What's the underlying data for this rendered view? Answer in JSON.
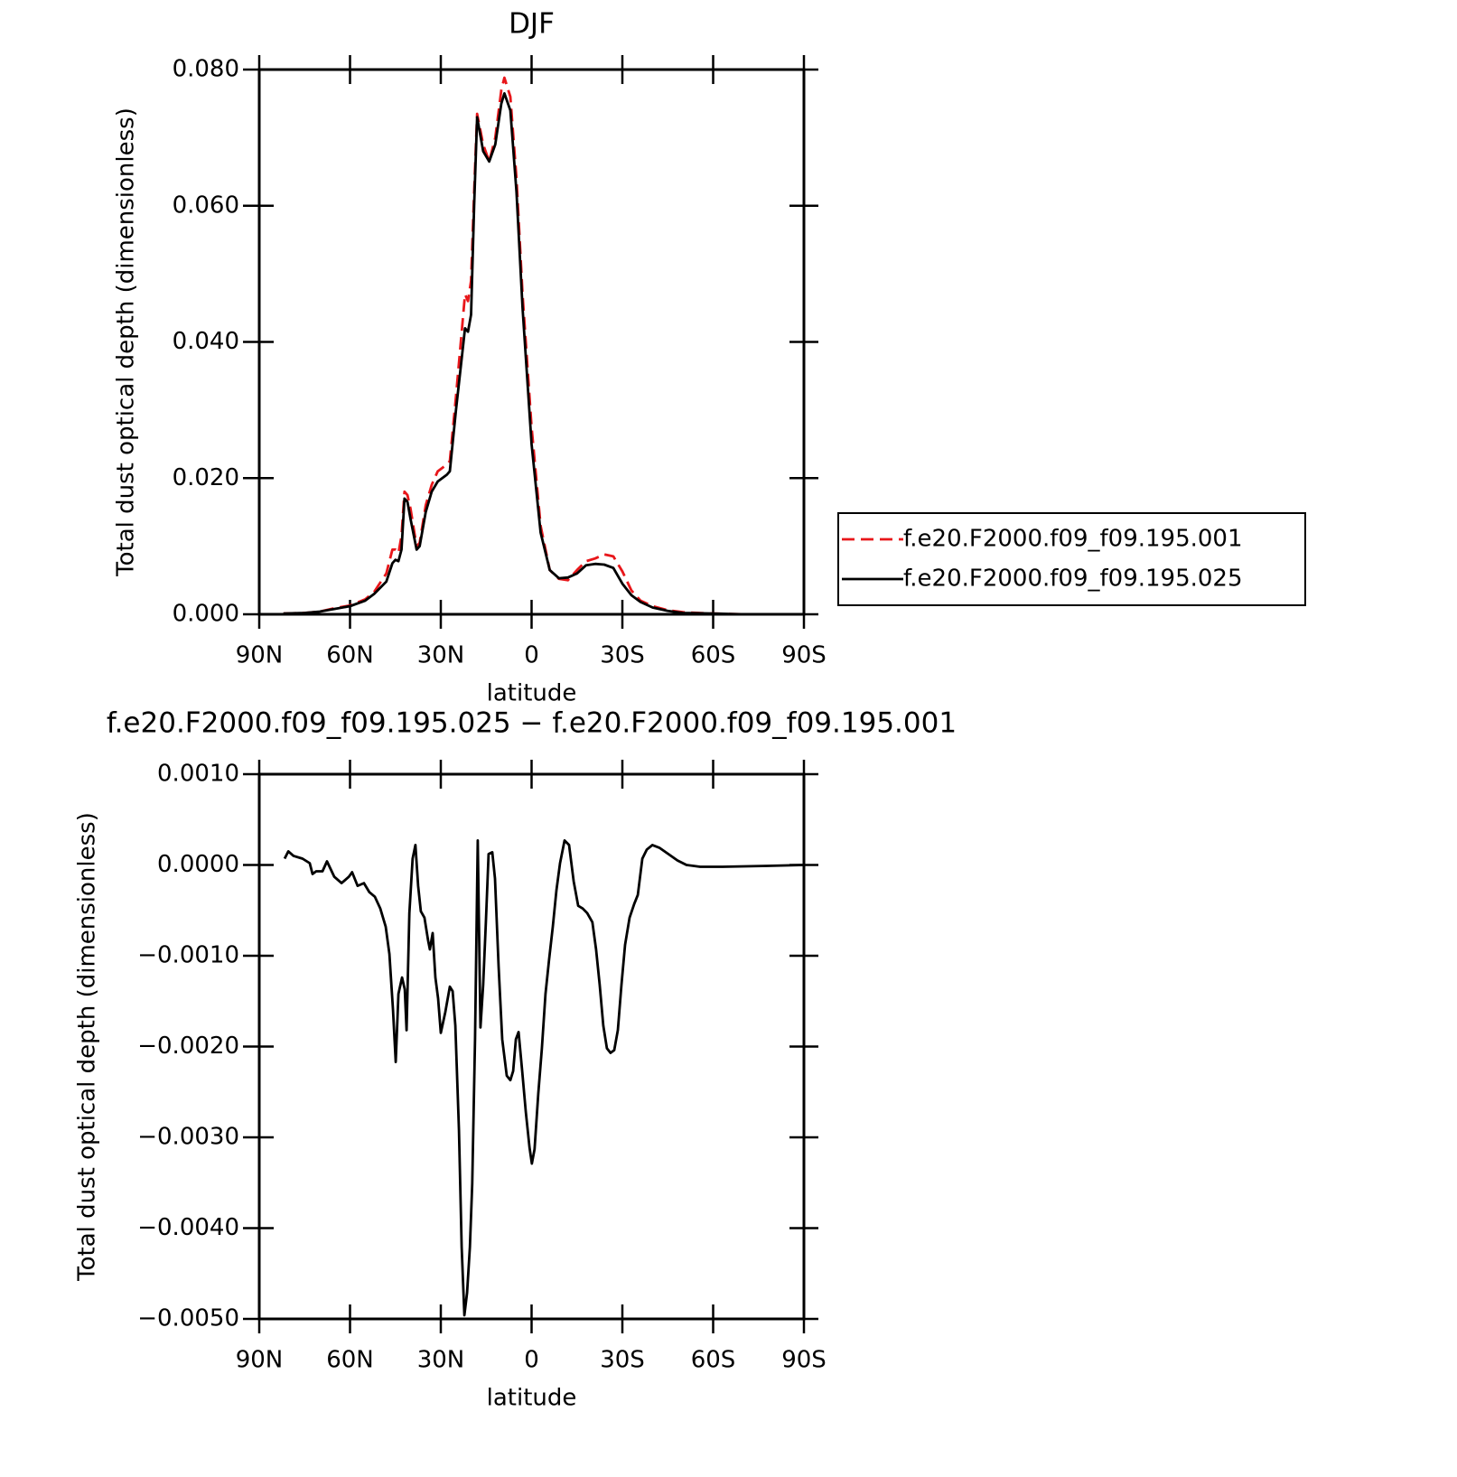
{
  "chart_data": [
    {
      "type": "line",
      "title": "DJF",
      "xlabel": "latitude",
      "ylabel": "Total dust optical depth (dimensionless)",
      "x": [
        82,
        75,
        70,
        65,
        60,
        55,
        52,
        48,
        46,
        45,
        44,
        43,
        42,
        41,
        40,
        38,
        37,
        35,
        33,
        31,
        28,
        27,
        25,
        23,
        22,
        21,
        20,
        19,
        18,
        16,
        14,
        12,
        10,
        9,
        7,
        5,
        3,
        0,
        -3,
        -6,
        -9,
        -12,
        -15,
        -18,
        -21,
        -24,
        -27,
        -30,
        -33,
        -36,
        -40,
        -45,
        -50,
        -60,
        -70,
        -80,
        -90
      ],
      "series": [
        {
          "name": "f.e20.F2000.f09_f09.195.001",
          "color": "#e8161a",
          "dash": true,
          "values": [
            0.0001,
            0.0002,
            0.0004,
            0.0009,
            0.0013,
            0.0022,
            0.0033,
            0.006,
            0.0095,
            0.0095,
            0.009,
            0.0115,
            0.018,
            0.0175,
            0.0155,
            0.01,
            0.0105,
            0.016,
            0.019,
            0.021,
            0.022,
            0.0225,
            0.032,
            0.042,
            0.047,
            0.046,
            0.049,
            0.062,
            0.0735,
            0.069,
            0.0665,
            0.07,
            0.077,
            0.0788,
            0.076,
            0.064,
            0.047,
            0.0275,
            0.013,
            0.0065,
            0.0052,
            0.005,
            0.0065,
            0.0078,
            0.0082,
            0.0088,
            0.0085,
            0.0063,
            0.0035,
            0.002,
            0.0012,
            0.0006,
            0.0003,
            0.0001,
            0,
            0,
            0
          ]
        },
        {
          "name": "f.e20.F2000.f09_f09.195.025",
          "color": "#000000",
          "dash": false,
          "values": [
            0.0001,
            0.0002,
            0.0004,
            0.0008,
            0.0012,
            0.002,
            0.003,
            0.0048,
            0.0075,
            0.008,
            0.0078,
            0.0095,
            0.017,
            0.0165,
            0.014,
            0.0095,
            0.01,
            0.015,
            0.018,
            0.0195,
            0.0205,
            0.021,
            0.03,
            0.038,
            0.042,
            0.0415,
            0.044,
            0.06,
            0.073,
            0.068,
            0.0665,
            0.069,
            0.075,
            0.0765,
            0.074,
            0.062,
            0.045,
            0.025,
            0.012,
            0.0065,
            0.0053,
            0.0054,
            0.006,
            0.0072,
            0.0074,
            0.0073,
            0.0068,
            0.0045,
            0.0028,
            0.0018,
            0.001,
            0.0005,
            0.0002,
            0.0001,
            0,
            0,
            0
          ]
        }
      ],
      "xlim": [
        90,
        -90
      ],
      "xticks": [
        {
          "value": 90,
          "label": "90N"
        },
        {
          "value": 60,
          "label": "60N"
        },
        {
          "value": 30,
          "label": "30N"
        },
        0,
        {
          "value": -30,
          "label": "30S"
        },
        {
          "value": -60,
          "label": "60S"
        },
        {
          "value": -90,
          "label": "90S"
        }
      ],
      "ylim": [
        0,
        0.08
      ],
      "yticks": [
        {
          "value": 0,
          "label": "0.000"
        },
        {
          "value": 0.02,
          "label": "0.020"
        },
        {
          "value": 0.04,
          "label": "0.040"
        },
        {
          "value": 0.06,
          "label": "0.060"
        },
        {
          "value": 0.08,
          "label": "0.080"
        }
      ],
      "legend": "right"
    },
    {
      "type": "line",
      "title": "f.e20.F2000.f09_f09.195.025 − f.e20.F2000.f09_f09.195.001",
      "xlabel": "latitude",
      "ylabel": "Total dust optical depth (dimensionless)",
      "x": [
        81.6,
        80.4,
        78.7,
        75.7,
        73.3,
        72.4,
        71.2,
        69.1,
        67.6,
        65.2,
        62.8,
        60.4,
        59.3,
        57.5,
        55.4,
        53.6,
        51.8,
        50,
        48.2,
        47,
        45.8,
        44.9,
        44,
        42.8,
        41.9,
        41.3,
        40.4,
        39.3,
        38.4,
        37.5,
        36.6,
        35.4,
        34.2,
        33.6,
        32.7,
        31.8,
        30.9,
        30,
        28.5,
        27,
        26.1,
        25.2,
        24,
        23.1,
        22.2,
        21.3,
        20.4,
        19.6,
        18.7,
        17.8,
        16.9,
        16,
        15.1,
        14.2,
        13,
        12.1,
        10.9,
        9.7,
        8.2,
        7,
        6.1,
        5.2,
        4.3,
        3.1,
        1.9,
        0.7,
        -0.1,
        -1,
        -2.2,
        -3.4,
        -4.6,
        -5.8,
        -7,
        -8.2,
        -9.4,
        -10.9,
        -12.4,
        -13.9,
        -15.4,
        -16.9,
        -18.4,
        -20.1,
        -21.3,
        -22.5,
        -23.7,
        -24.9,
        -26.1,
        -27.3,
        -28.5,
        -29.7,
        -30.9,
        -32.4,
        -33.9,
        -35.1,
        -36.6,
        -38.1,
        -39.9,
        -42.2,
        -45.2,
        -48.2,
        -51.2,
        -55.7,
        -63.1,
        -78.1,
        -90
      ],
      "values": [
        7e-05,
        0.00015,
        0.0001,
        7e-05,
        2e-05,
        -0.0001,
        -7e-05,
        -7e-05,
        4e-05,
        -0.00013,
        -0.0002,
        -0.00013,
        -8e-05,
        -0.00023,
        -0.0002,
        -0.0003,
        -0.00035,
        -0.00048,
        -0.00068,
        -0.00098,
        -0.0016,
        -0.00217,
        -0.00142,
        -0.00124,
        -0.00137,
        -0.00182,
        -0.00053,
        7e-05,
        0.00022,
        -0.00023,
        -0.00051,
        -0.00058,
        -0.00083,
        -0.00093,
        -0.00075,
        -0.00124,
        -0.00147,
        -0.00185,
        -0.00162,
        -0.00134,
        -0.00139,
        -0.00177,
        -0.00292,
        -0.00421,
        -0.00496,
        -0.00471,
        -0.00421,
        -0.00351,
        -0.00192,
        0.00027,
        -0.00179,
        -0.00132,
        -0.00063,
        0.00012,
        0.00014,
        -0.00015,
        -0.00112,
        -0.00192,
        -0.00232,
        -0.00237,
        -0.00227,
        -0.00192,
        -0.00184,
        -0.00227,
        -0.00272,
        -0.00311,
        -0.00329,
        -0.00313,
        -0.00252,
        -0.00202,
        -0.00142,
        -0.00104,
        -0.00068,
        -0.00028,
        2e-05,
        0.00027,
        0.00022,
        -0.00018,
        -0.00045,
        -0.00048,
        -0.00053,
        -0.00063,
        -0.00093,
        -0.00132,
        -0.00177,
        -0.00202,
        -0.00207,
        -0.00204,
        -0.00182,
        -0.00132,
        -0.00088,
        -0.00058,
        -0.00043,
        -0.00033,
        7e-05,
        0.00017,
        0.00022,
        0.00019,
        0.00012,
        5e-05,
        0,
        -2e-05,
        -2e-05,
        -1e-05,
        0
      ],
      "color": "#000000",
      "xlim": [
        90,
        -90
      ],
      "xticks": [
        {
          "value": 90,
          "label": "90N"
        },
        {
          "value": 60,
          "label": "60N"
        },
        {
          "value": 30,
          "label": "30N"
        },
        0,
        {
          "value": -30,
          "label": "30S"
        },
        {
          "value": -60,
          "label": "60S"
        },
        {
          "value": -90,
          "label": "90S"
        }
      ],
      "ylim": [
        -0.005,
        0.001
      ],
      "yticks": [
        {
          "value": -0.005,
          "label": "−0.0050"
        },
        {
          "value": -0.004,
          "label": "−0.0040"
        },
        {
          "value": -0.003,
          "label": "−0.0030"
        },
        {
          "value": -0.002,
          "label": "−0.0020"
        },
        {
          "value": -0.001,
          "label": "−0.0010"
        },
        {
          "value": 0,
          "label": "0.0000"
        },
        {
          "value": 0.001,
          "label": "0.0010"
        }
      ]
    }
  ]
}
